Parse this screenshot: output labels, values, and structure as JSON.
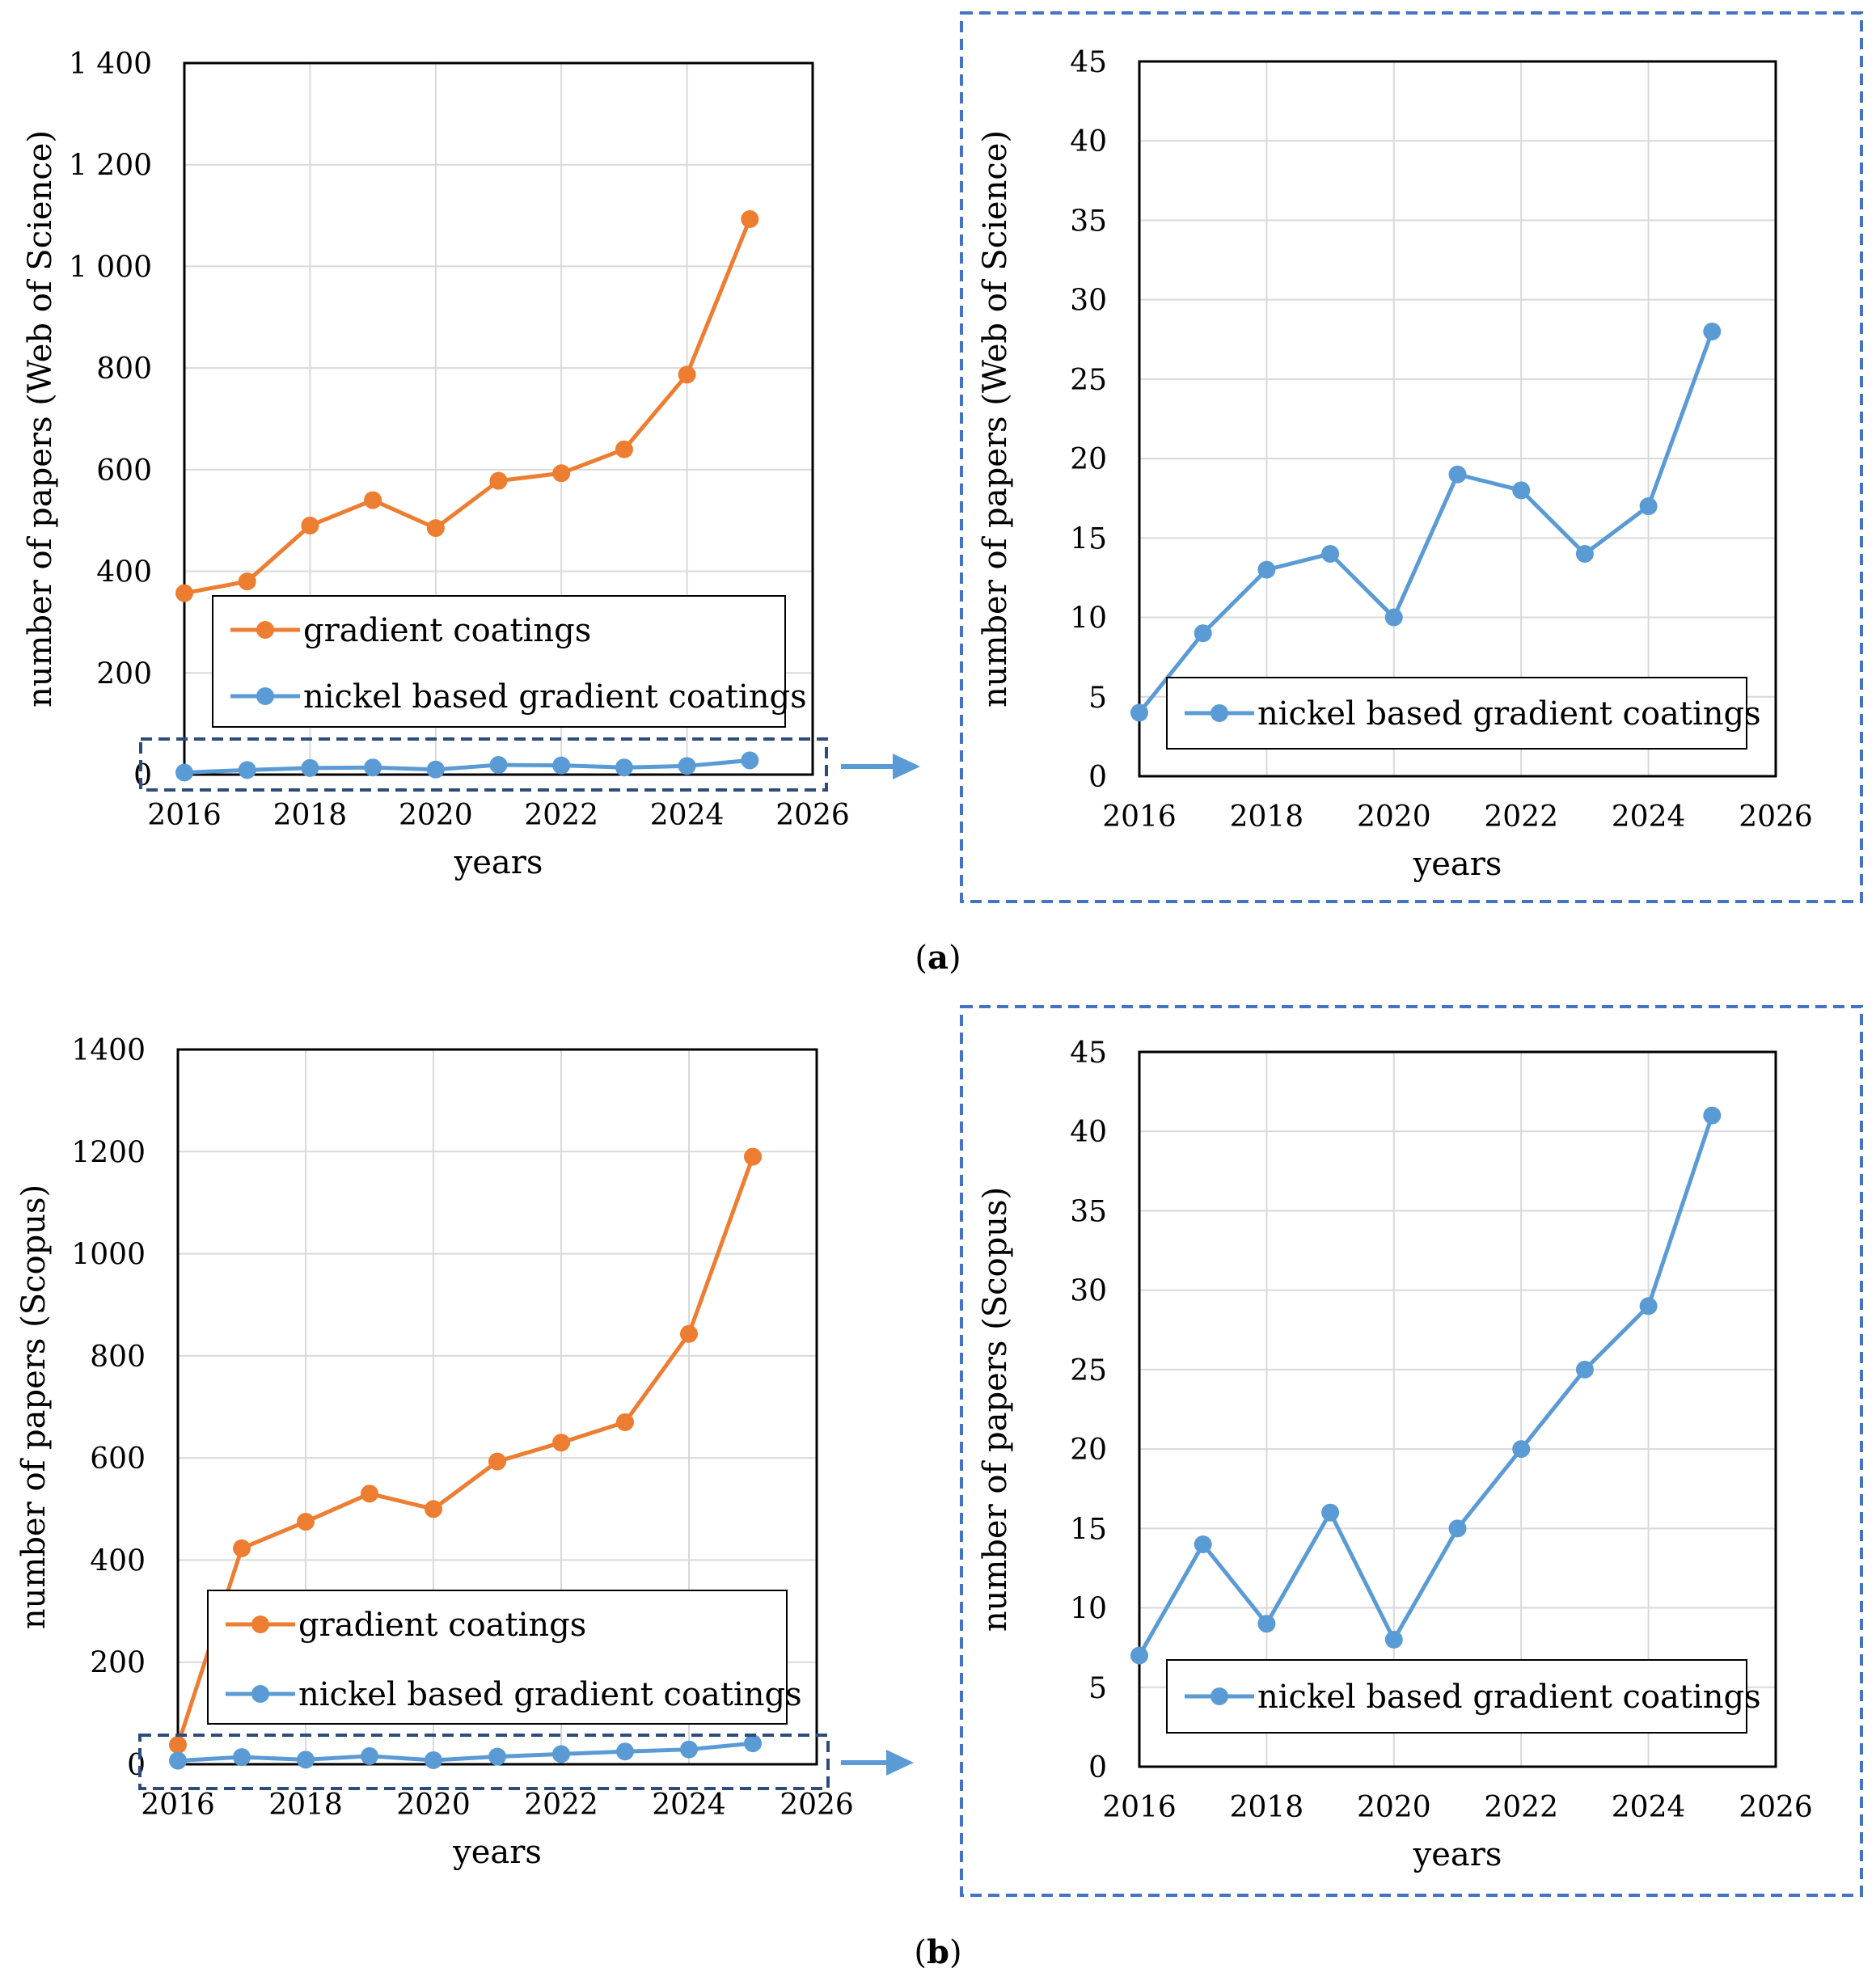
{
  "figure": {
    "panel_a_label": "a",
    "panel_b_label": "b",
    "paren_open": "(",
    "paren_close": ")"
  },
  "colors": {
    "gradient_coatings": "#ED7D31",
    "nickel_based": "#5B9BD5",
    "zoom_box": "#4472C4",
    "highlight_box": "#2F4B7C",
    "grid": "#D9D9D9"
  },
  "chart_data": [
    {
      "id": "a-left",
      "type": "line",
      "title": "",
      "xlabel": "years",
      "ylabel": "number of papers (Web of Science)",
      "x": [
        2016,
        2017,
        2018,
        2019,
        2020,
        2021,
        2022,
        2023,
        2024,
        2025
      ],
      "xlim": [
        2016,
        2026
      ],
      "xticks": [
        2016,
        2018,
        2020,
        2022,
        2024,
        2026
      ],
      "ylim": [
        0,
        1400
      ],
      "yticks": [
        0,
        200,
        400,
        600,
        800,
        1000,
        1200,
        1400
      ],
      "ytick_labels": [
        "0",
        "200",
        "400",
        "600",
        "800",
        "1 000",
        "1 200",
        "1 400"
      ],
      "grid": true,
      "legend_position": "bottom-center",
      "series": [
        {
          "name": "gradient coatings",
          "color_key": "gradient_coatings",
          "values": [
            357,
            380,
            490,
            540,
            485,
            578,
            593,
            640,
            787,
            1093
          ]
        },
        {
          "name": "nickel based gradient coatings",
          "color_key": "nickel_based",
          "values": [
            4,
            9,
            13,
            14,
            10,
            19,
            18,
            14,
            17,
            28
          ]
        }
      ]
    },
    {
      "id": "a-right",
      "type": "line",
      "title": "",
      "xlabel": "years",
      "ylabel": "number of papers (Web of Science)",
      "x": [
        2016,
        2017,
        2018,
        2019,
        2020,
        2021,
        2022,
        2023,
        2024,
        2025
      ],
      "xlim": [
        2016,
        2026
      ],
      "xticks": [
        2016,
        2018,
        2020,
        2022,
        2024,
        2026
      ],
      "ylim": [
        0,
        45
      ],
      "yticks": [
        0,
        5,
        10,
        15,
        20,
        25,
        30,
        35,
        40,
        45
      ],
      "ytick_labels": [
        "0",
        "5",
        "10",
        "15",
        "20",
        "25",
        "30",
        "35",
        "40",
        "45"
      ],
      "grid": true,
      "legend_position": "bottom-center",
      "series": [
        {
          "name": "nickel based gradient coatings",
          "color_key": "nickel_based",
          "values": [
            4,
            9,
            13,
            14,
            10,
            19,
            18,
            14,
            17,
            28
          ]
        }
      ]
    },
    {
      "id": "b-left",
      "type": "line",
      "title": "",
      "xlabel": "years",
      "ylabel": "number of papers (Scopus)",
      "x": [
        2016,
        2017,
        2018,
        2019,
        2020,
        2021,
        2022,
        2023,
        2024,
        2025
      ],
      "xlim": [
        2016,
        2026
      ],
      "xticks": [
        2016,
        2018,
        2020,
        2022,
        2024,
        2026
      ],
      "ylim": [
        0,
        1400
      ],
      "yticks": [
        0,
        200,
        400,
        600,
        800,
        1000,
        1200,
        1400
      ],
      "ytick_labels": [
        "0",
        "200",
        "400",
        "600",
        "800",
        "1000",
        "1200",
        "1400"
      ],
      "grid": true,
      "legend_position": "bottom-center",
      "series": [
        {
          "name": "gradient coatings",
          "color_key": "gradient_coatings",
          "values": [
            38,
            423,
            475,
            530,
            500,
            593,
            630,
            670,
            843,
            1190
          ]
        },
        {
          "name": "nickel based gradient coatings",
          "color_key": "nickel_based",
          "values": [
            7,
            14,
            9,
            16,
            8,
            15,
            20,
            25,
            29,
            41
          ]
        }
      ]
    },
    {
      "id": "b-right",
      "type": "line",
      "title": "",
      "xlabel": "years",
      "ylabel": "number of papers (Scopus)",
      "x": [
        2016,
        2017,
        2018,
        2019,
        2020,
        2021,
        2022,
        2023,
        2024,
        2025
      ],
      "xlim": [
        2016,
        2026
      ],
      "xticks": [
        2016,
        2018,
        2020,
        2022,
        2024,
        2026
      ],
      "ylim": [
        0,
        45
      ],
      "yticks": [
        0,
        5,
        10,
        15,
        20,
        25,
        30,
        35,
        40,
        45
      ],
      "ytick_labels": [
        "0",
        "5",
        "10",
        "15",
        "20",
        "25",
        "30",
        "35",
        "40",
        "45"
      ],
      "grid": true,
      "legend_position": "bottom-center",
      "series": [
        {
          "name": "nickel based gradient coatings",
          "color_key": "nickel_based",
          "values": [
            7,
            14,
            9,
            16,
            8,
            15,
            20,
            25,
            29,
            41
          ]
        }
      ]
    }
  ]
}
